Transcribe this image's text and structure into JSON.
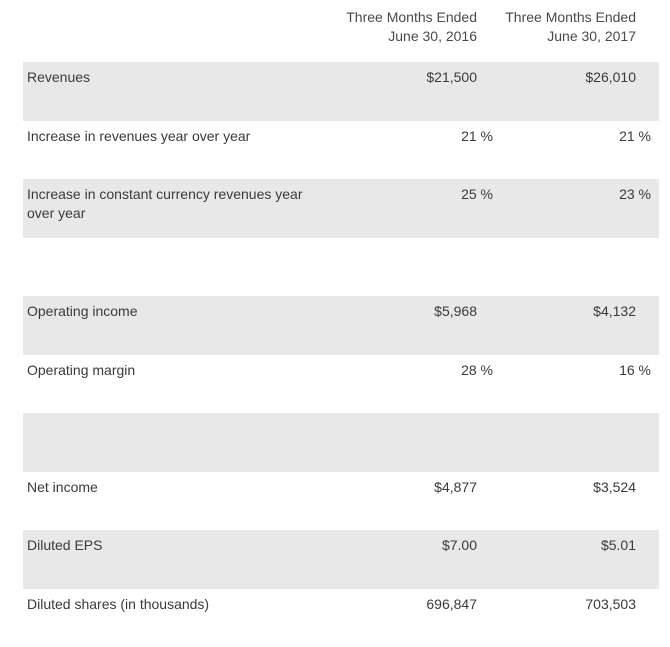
{
  "header": {
    "col1": [
      "Three Months Ended",
      "June 30, 2016"
    ],
    "col2": [
      "Three Months Ended",
      "June 30, 2017"
    ]
  },
  "rows": [
    {
      "label": "Revenues",
      "v1": "$21,500",
      "v2": "$26,010",
      "shaded": true,
      "pct": false
    },
    {
      "label": "Increase in revenues year over year",
      "v1": "21 %",
      "v2": "21 %",
      "shaded": false,
      "pct": true
    },
    {
      "label": "Increase in constant currency revenues year over year",
      "v1": "25 %",
      "v2": "23 %",
      "shaded": true,
      "pct": true
    },
    {
      "label": "",
      "v1": "",
      "v2": "",
      "shaded": false,
      "pct": false
    },
    {
      "label": "Operating income",
      "v1": "$5,968",
      "v2": "$4,132",
      "shaded": true,
      "pct": false
    },
    {
      "label": "Operating margin",
      "v1": "28 %",
      "v2": "16 %",
      "shaded": false,
      "pct": true
    },
    {
      "label": "",
      "v1": "",
      "v2": "",
      "shaded": true,
      "pct": false
    },
    {
      "label": "Net income",
      "v1": "$4,877",
      "v2": "$3,524",
      "shaded": false,
      "pct": false
    },
    {
      "label": "Diluted EPS",
      "v1": "$7.00",
      "v2": "$5.01",
      "shaded": true,
      "pct": false
    },
    {
      "label": "Diluted shares (in thousands)",
      "v1": "696,847",
      "v2": "703,503",
      "shaded": false,
      "pct": false
    }
  ],
  "colors": {
    "row_shade": "#e8e8e8",
    "text": "#3a3a3a"
  }
}
